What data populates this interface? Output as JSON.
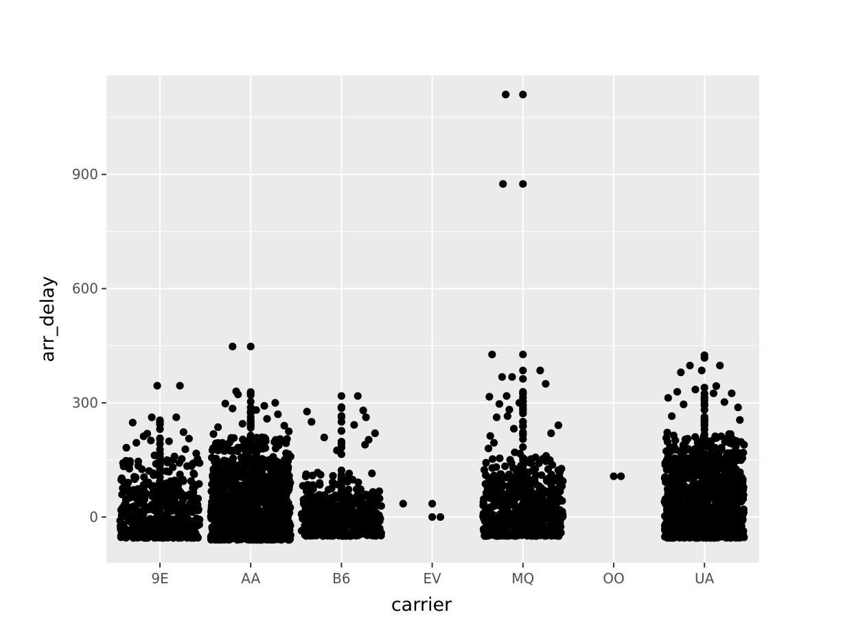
{
  "chart_data": {
    "type": "scatter",
    "title": "",
    "xlabel": "carrier",
    "ylabel": "arr_delay",
    "categories": [
      "9E",
      "AA",
      "B6",
      "EV",
      "MQ",
      "OO",
      "UA"
    ],
    "y_ticks": [
      0,
      300,
      600,
      900
    ],
    "y_tick_labels": [
      "0",
      "300",
      "600",
      "900"
    ],
    "ylim": [
      -120,
      1160
    ],
    "grid": true,
    "jitter": true,
    "point_color": "#000000",
    "panel_background": "#ebebeb",
    "grid_color": "#ffffff",
    "series": [
      {
        "category": "9E",
        "points": [
          {
            "dx": -0.03,
            "y": 345
          },
          {
            "dx": 0.22,
            "y": 345
          },
          {
            "dx": -0.09,
            "y": 262
          },
          {
            "dx": 0.18,
            "y": 262
          },
          {
            "dx": -0.3,
            "y": 248
          },
          {
            "dx": 0.26,
            "y": 223
          },
          {
            "dx": -0.14,
            "y": 219
          },
          {
            "dx": -0.18,
            "y": 212
          },
          {
            "dx": 0.32,
            "y": 206
          },
          {
            "dx": -0.26,
            "y": 195
          },
          {
            "dx": -0.1,
            "y": 201
          },
          {
            "dx": 0.1,
            "y": 199
          },
          {
            "dx": -0.37,
            "y": 182
          },
          {
            "dx": 0.28,
            "y": 178
          },
          {
            "dx": 0.4,
            "y": 167
          },
          {
            "dx": -0.06,
            "y": 162
          },
          {
            "dx": 0.16,
            "y": 159
          },
          {
            "dx": -0.33,
            "y": 147
          },
          {
            "dx": 0.36,
            "y": 140
          },
          {
            "dx": -0.4,
            "y": 133
          },
          {
            "dx": -0.12,
            "y": 121
          }
        ],
        "body": {
          "center": 0,
          "width": 0.44,
          "y_min": -55,
          "y_max": 95,
          "count": 420
        },
        "column": {
          "y_min": -30,
          "y_max": 262,
          "count": 48
        }
      },
      {
        "category": "AA",
        "points": [
          {
            "dx": -0.2,
            "y": 448
          },
          {
            "dx": 0.0,
            "y": 448
          },
          {
            "dx": -0.16,
            "y": 330
          },
          {
            "dx": -0.14,
            "y": 322
          },
          {
            "dx": 0.0,
            "y": 325
          },
          {
            "dx": 0.27,
            "y": 300
          },
          {
            "dx": -0.28,
            "y": 298
          },
          {
            "dx": 0.15,
            "y": 292
          },
          {
            "dx": -0.2,
            "y": 285
          },
          {
            "dx": 0.06,
            "y": 281
          },
          {
            "dx": 0.3,
            "y": 270
          },
          {
            "dx": -0.36,
            "y": 236
          },
          {
            "dx": 0.37,
            "y": 240
          },
          {
            "dx": -0.09,
            "y": 245
          },
          {
            "dx": 0.18,
            "y": 258
          },
          {
            "dx": 0.42,
            "y": 225
          },
          {
            "dx": -0.41,
            "y": 218
          },
          {
            "dx": 0.4,
            "y": 205
          }
        ],
        "body": {
          "center": 0,
          "width": 0.44,
          "y_min": -60,
          "y_max": 150,
          "count": 900
        },
        "column": {
          "y_min": -40,
          "y_max": 330,
          "count": 60
        }
      },
      {
        "category": "B6",
        "points": [
          {
            "dx": 0.0,
            "y": 318
          },
          {
            "dx": 0.18,
            "y": 318
          },
          {
            "dx": -0.38,
            "y": 277
          },
          {
            "dx": 0.24,
            "y": 280
          },
          {
            "dx": 0.27,
            "y": 262
          },
          {
            "dx": -0.33,
            "y": 250
          },
          {
            "dx": 0.14,
            "y": 242
          },
          {
            "dx": 0.37,
            "y": 220
          },
          {
            "dx": -0.19,
            "y": 209
          },
          {
            "dx": 0.3,
            "y": 203
          },
          {
            "dx": 0.26,
            "y": 190
          },
          {
            "dx": -0.05,
            "y": 175
          }
        ],
        "body": {
          "center": 0,
          "width": 0.44,
          "y_min": -50,
          "y_max": 60,
          "count": 420
        },
        "column": {
          "y_min": -30,
          "y_max": 290,
          "count": 34
        }
      },
      {
        "category": "EV",
        "points": [
          {
            "dx": -0.32,
            "y": 35
          },
          {
            "dx": 0.0,
            "y": 35
          },
          {
            "dx": 0.0,
            "y": 0
          },
          {
            "dx": 0.09,
            "y": 0
          }
        ]
      },
      {
        "category": "MQ",
        "points": [
          {
            "dx": -0.19,
            "y": 1110
          },
          {
            "dx": 0.0,
            "y": 1110
          },
          {
            "dx": -0.22,
            "y": 875
          },
          {
            "dx": 0.0,
            "y": 875
          },
          {
            "dx": -0.34,
            "y": 427
          },
          {
            "dx": 0.0,
            "y": 427
          },
          {
            "dx": 0.19,
            "y": 385
          },
          {
            "dx": 0.0,
            "y": 385
          },
          {
            "dx": -0.23,
            "y": 368
          },
          {
            "dx": -0.12,
            "y": 368
          },
          {
            "dx": 0.0,
            "y": 363
          },
          {
            "dx": 0.25,
            "y": 350
          },
          {
            "dx": -0.18,
            "y": 318
          },
          {
            "dx": -0.37,
            "y": 316
          },
          {
            "dx": 0.0,
            "y": 314
          },
          {
            "dx": -0.26,
            "y": 297
          },
          {
            "dx": -0.04,
            "y": 300
          },
          {
            "dx": -0.15,
            "y": 282
          },
          {
            "dx": -0.29,
            "y": 262
          },
          {
            "dx": -0.17,
            "y": 265
          },
          {
            "dx": -0.1,
            "y": 232
          },
          {
            "dx": 0.39,
            "y": 241
          },
          {
            "dx": 0.31,
            "y": 220
          },
          {
            "dx": -0.36,
            "y": 213
          },
          {
            "dx": -0.32,
            "y": 195
          },
          {
            "dx": -0.38,
            "y": 180
          }
        ],
        "body": {
          "center": 0,
          "width": 0.44,
          "y_min": -50,
          "y_max": 110,
          "count": 520
        },
        "column": {
          "y_min": -40,
          "y_max": 330,
          "count": 44
        }
      },
      {
        "category": "OO",
        "points": [
          {
            "dx": 0.0,
            "y": 107
          },
          {
            "dx": 0.08,
            "y": 107
          }
        ]
      },
      {
        "category": "UA",
        "points": [
          {
            "dx": 0.0,
            "y": 425
          },
          {
            "dx": 0.0,
            "y": 418
          },
          {
            "dx": -0.16,
            "y": 398
          },
          {
            "dx": 0.17,
            "y": 398
          },
          {
            "dx": -0.03,
            "y": 385
          },
          {
            "dx": -0.26,
            "y": 380
          },
          {
            "dx": 0.13,
            "y": 344
          },
          {
            "dx": 0.0,
            "y": 340
          },
          {
            "dx": -0.1,
            "y": 335
          },
          {
            "dx": -0.3,
            "y": 329
          },
          {
            "dx": 0.3,
            "y": 325
          },
          {
            "dx": 0.1,
            "y": 325
          },
          {
            "dx": -0.4,
            "y": 313
          },
          {
            "dx": 0.22,
            "y": 302
          },
          {
            "dx": -0.23,
            "y": 296
          },
          {
            "dx": 0.37,
            "y": 288
          },
          {
            "dx": -0.36,
            "y": 265
          },
          {
            "dx": 0.39,
            "y": 255
          },
          {
            "dx": -0.41,
            "y": 222
          },
          {
            "dx": 0.35,
            "y": 200
          },
          {
            "dx": -0.42,
            "y": 173
          }
        ],
        "body": {
          "center": 0,
          "width": 0.44,
          "y_min": -55,
          "y_max": 160,
          "count": 880
        },
        "column": {
          "y_min": -40,
          "y_max": 330,
          "count": 60
        }
      }
    ]
  }
}
